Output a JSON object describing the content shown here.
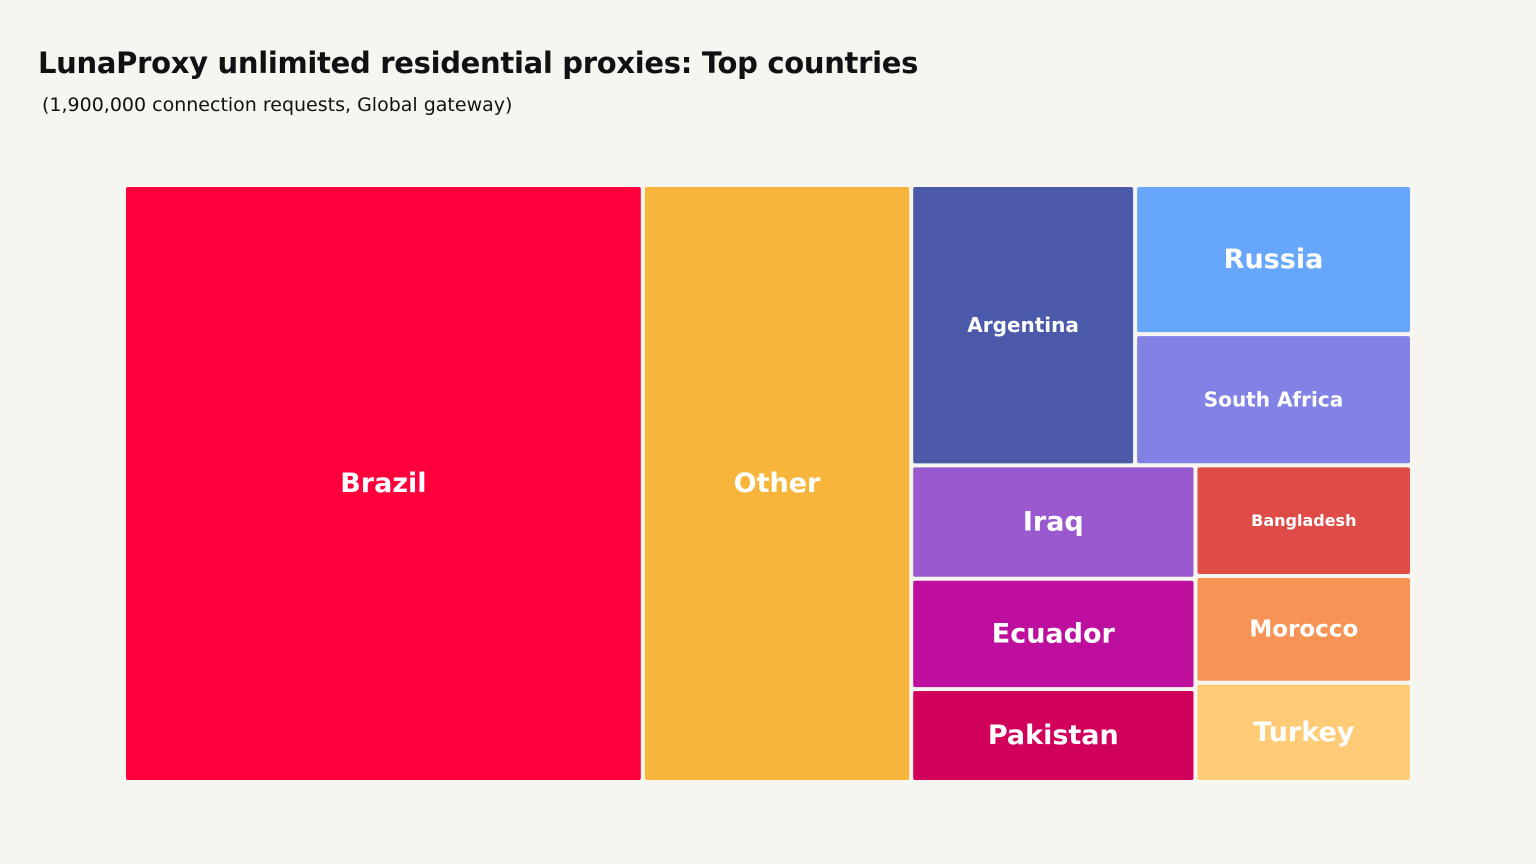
{
  "header": {
    "title": "LunaProxy unlimited residential proxies: Top countries",
    "subtitle": "(1,900,000 connection requests, Global gateway)"
  },
  "chart_data": {
    "type": "treemap",
    "title": "LunaProxy unlimited residential proxies: Top countries",
    "subtitle": "(1,900,000 connection requests, Global gateway)",
    "label_color": "#ffffff",
    "items": [
      {
        "name": "Brazil",
        "value": 37.5,
        "color": "#ff003c"
      },
      {
        "name": "Other",
        "value": 19.4,
        "color": "#f8b53b"
      },
      {
        "name": "Argentina",
        "value": 7.6,
        "color": "#4a5aa8"
      },
      {
        "name": "Russia",
        "value": 5.0,
        "color": "#66a6fb"
      },
      {
        "name": "South Africa",
        "value": 4.4,
        "color": "#8282e6"
      },
      {
        "name": "Iraq",
        "value": 3.9,
        "color": "#9b59cf"
      },
      {
        "name": "Bangladesh",
        "value": 2.9,
        "color": "#df4c47"
      },
      {
        "name": "Ecuador",
        "value": 3.8,
        "color": "#bd0e9e"
      },
      {
        "name": "Morocco",
        "value": 2.8,
        "color": "#f79455"
      },
      {
        "name": "Pakistan",
        "value": 3.2,
        "color": "#d1005b"
      },
      {
        "name": "Turkey",
        "value": 2.6,
        "color": "#ffcb76"
      }
    ]
  }
}
